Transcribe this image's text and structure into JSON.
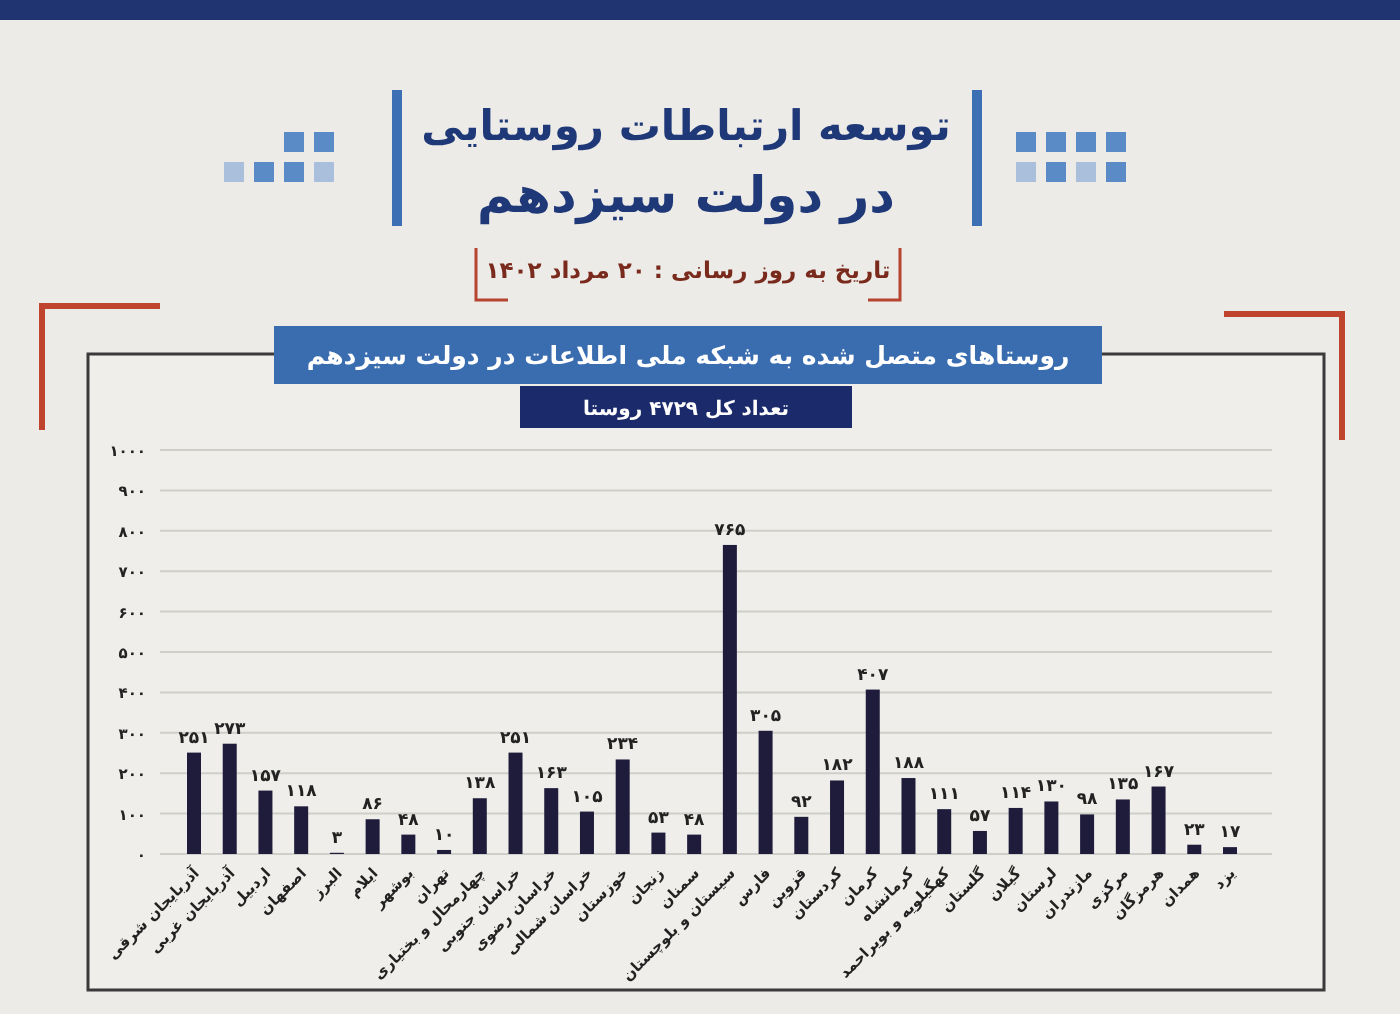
{
  "chart_data": {
    "type": "bar",
    "title": "توسعه ارتباطات روستایی\nدر دولت سیزدهم",
    "subtitle": "تاریخ به روز رسانی : ۲۰ مرداد ۱۴۰۲",
    "annotations": [
      "روستاهای متصل شده به شبکه ملی اطلاعات در دولت سیزدهم",
      "تعداد کل ۴۷۲۹ روستا"
    ],
    "categories": [
      "آذربایجان شرقی",
      "آذربایجان غربی",
      "اردبیل",
      "اصفهان",
      "البرز",
      "ایلام",
      "بوشهر",
      "تهران",
      "چهارمحال و بختیاری",
      "خراسان جنوبی",
      "خراسان رضوی",
      "خراسان شمالی",
      "خوزستان",
      "زنجان",
      "سمنان",
      "سیستان و بلوچستان",
      "فارس",
      "قزوین",
      "کردستان",
      "کرمان",
      "کرمانشاه",
      "کهگیلویه و بویراحمد",
      "گلستان",
      "گیلان",
      "لرستان",
      "مازندران",
      "مرکزی",
      "هرمزگان",
      "همدان",
      "یزد"
    ],
    "values": [
      251,
      273,
      157,
      118,
      3,
      86,
      48,
      10,
      138,
      251,
      163,
      105,
      234,
      53,
      48,
      765,
      305,
      92,
      182,
      407,
      188,
      111,
      57,
      114,
      130,
      98,
      135,
      167,
      23,
      17
    ],
    "value_labels": [
      "۲۵۱",
      "۲۷۳",
      "۱۵۷",
      "۱۱۸",
      "۳",
      "۸۶",
      "۴۸",
      "۱۰",
      "۱۳۸",
      "۲۵۱",
      "۱۶۳",
      "۱۰۵",
      "۲۳۴",
      "۵۳",
      "۴۸",
      "۷۶۵",
      "۳۰۵",
      "۹۲",
      "۱۸۲",
      "۴۰۷",
      "۱۸۸",
      "۱۱۱",
      "۵۷",
      "۱۱۴",
      "۱۳۰",
      "۹۸",
      "۱۳۵",
      "۱۶۷",
      "۲۳",
      "۱۷"
    ],
    "color": "#1e1c3a",
    "ylim": [
      0,
      1000
    ],
    "yticks": [
      {
        "value": 0,
        "label": "۰"
      },
      {
        "value": 100,
        "label": "۱۰۰"
      },
      {
        "value": 200,
        "label": "۲۰۰"
      },
      {
        "value": 300,
        "label": "۳۰۰"
      },
      {
        "value": 400,
        "label": "۴۰۰"
      },
      {
        "value": 500,
        "label": "۵۰۰"
      },
      {
        "value": 600,
        "label": "۶۰۰"
      },
      {
        "value": 700,
        "label": "۷۰۰"
      },
      {
        "value": 800,
        "label": "۸۰۰"
      },
      {
        "value": 900,
        "label": "۹۰۰"
      },
      {
        "value": 1000,
        "label": "۱۰۰۰"
      }
    ],
    "grid": "y"
  }
}
